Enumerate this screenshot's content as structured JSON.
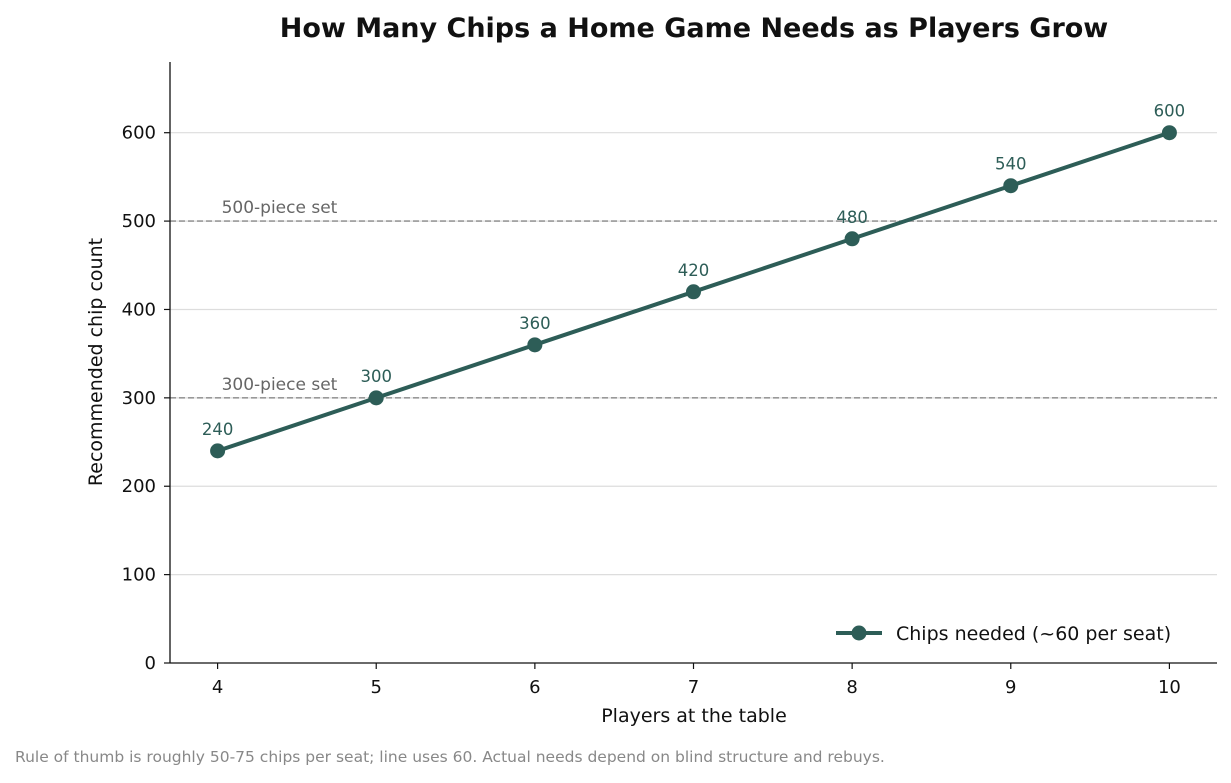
{
  "chart_data": {
    "type": "line",
    "title": "How Many Chips a Home Game Needs as Players Grow",
    "xlabel": "Players at the table",
    "ylabel": "Recommended chip count",
    "x": [
      4,
      5,
      6,
      7,
      8,
      9,
      10
    ],
    "xlim": [
      3.7,
      10.3
    ],
    "ylim": [
      0,
      680
    ],
    "yticks": [
      0,
      100,
      200,
      300,
      400,
      500,
      600
    ],
    "grid": "horizontal",
    "series": [
      {
        "name": "Chips needed (~60 per seat)",
        "values": [
          240,
          300,
          360,
          420,
          480,
          540,
          600
        ],
        "color": "#2d5d57"
      }
    ],
    "reference_lines": [
      {
        "value": 500,
        "label": "500-piece set"
      },
      {
        "value": 300,
        "label": "300-piece set"
      }
    ],
    "legend_position": "bottom-right",
    "footnote": "Rule of thumb is roughly 50-75 chips per seat; line uses 60. Actual needs depend on blind structure and rebuys."
  }
}
